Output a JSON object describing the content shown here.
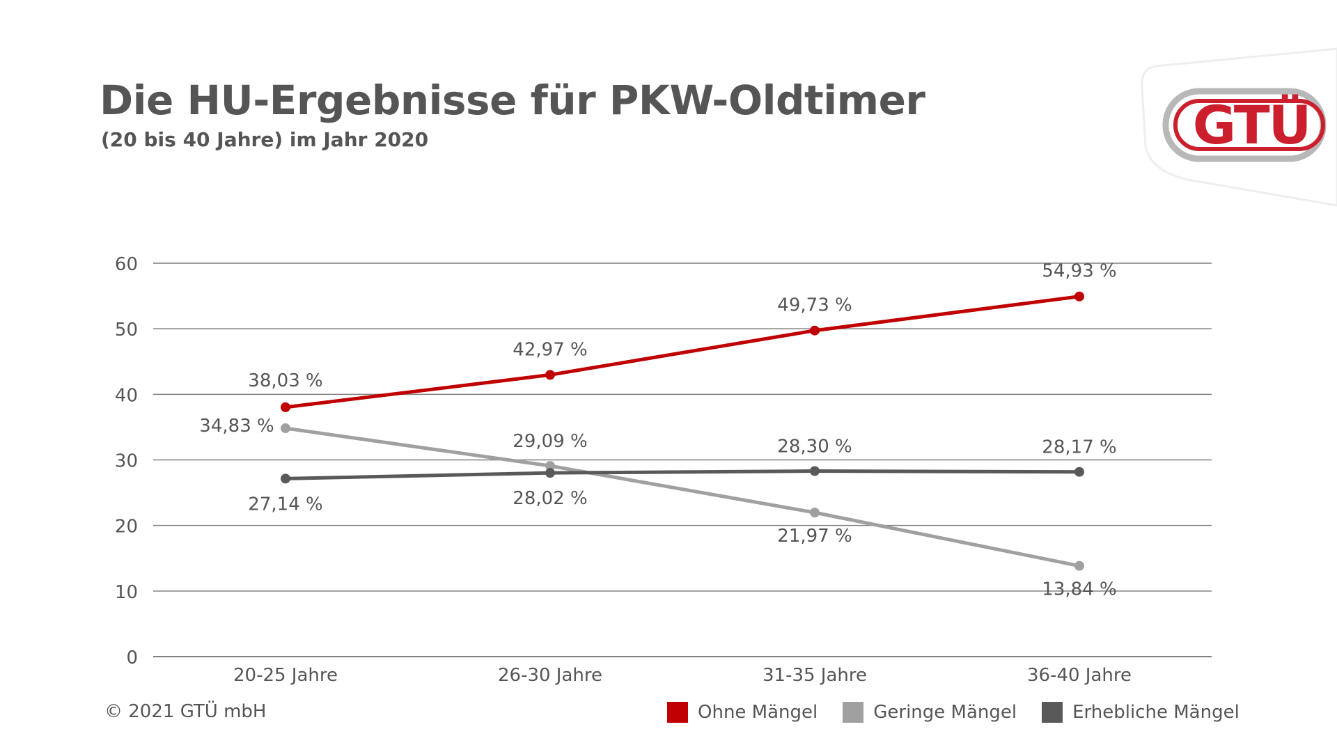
{
  "header": {
    "title": "Die HU-Ergebnisse für PKW-Oldtimer",
    "subtitle": "(20 bis 40 Jahre) im Jahr 2020"
  },
  "logo": {
    "text": "GTÜ",
    "color": "#cc1f2d",
    "ring_color": "#b8b8b8"
  },
  "footer": {
    "copyright": "© 2021 GTÜ mbH"
  },
  "colors": {
    "ohne": "#c00000",
    "geringe": "#a0a0a0",
    "erhebliche": "#595959",
    "grid": "#7f7f7f",
    "text": "#555555"
  },
  "chart_data": {
    "type": "line",
    "title": "Die HU-Ergebnisse für PKW-Oldtimer",
    "subtitle": "(20 bis 40 Jahre) im Jahr 2020",
    "xlabel": "",
    "ylabel": "",
    "categories": [
      "20-25 Jahre",
      "26-30 Jahre",
      "31-35 Jahre",
      "36-40 Jahre"
    ],
    "ylim": [
      0,
      60
    ],
    "yticks": [
      0,
      10,
      20,
      30,
      40,
      50,
      60
    ],
    "grid": true,
    "legend_position": "bottom-right",
    "series": [
      {
        "name": "Ohne Mängel",
        "key": "ohne",
        "values": [
          38.03,
          42.97,
          49.73,
          54.93
        ],
        "labels": [
          "38,03 %",
          "42,97 %",
          "49,73 %",
          "54,93 %"
        ]
      },
      {
        "name": "Geringe Mängel",
        "key": "geringe",
        "values": [
          34.83,
          29.09,
          21.97,
          13.84
        ],
        "labels": [
          "34,83 %",
          "29,09 %",
          "21,97 %",
          "13,84 %"
        ]
      },
      {
        "name": "Erhebliche Mängel",
        "key": "erhebliche",
        "values": [
          27.14,
          28.02,
          28.3,
          28.17
        ],
        "labels": [
          "27,14 %",
          "28,02 %",
          "28,30 %",
          "28,17 %"
        ]
      }
    ]
  }
}
